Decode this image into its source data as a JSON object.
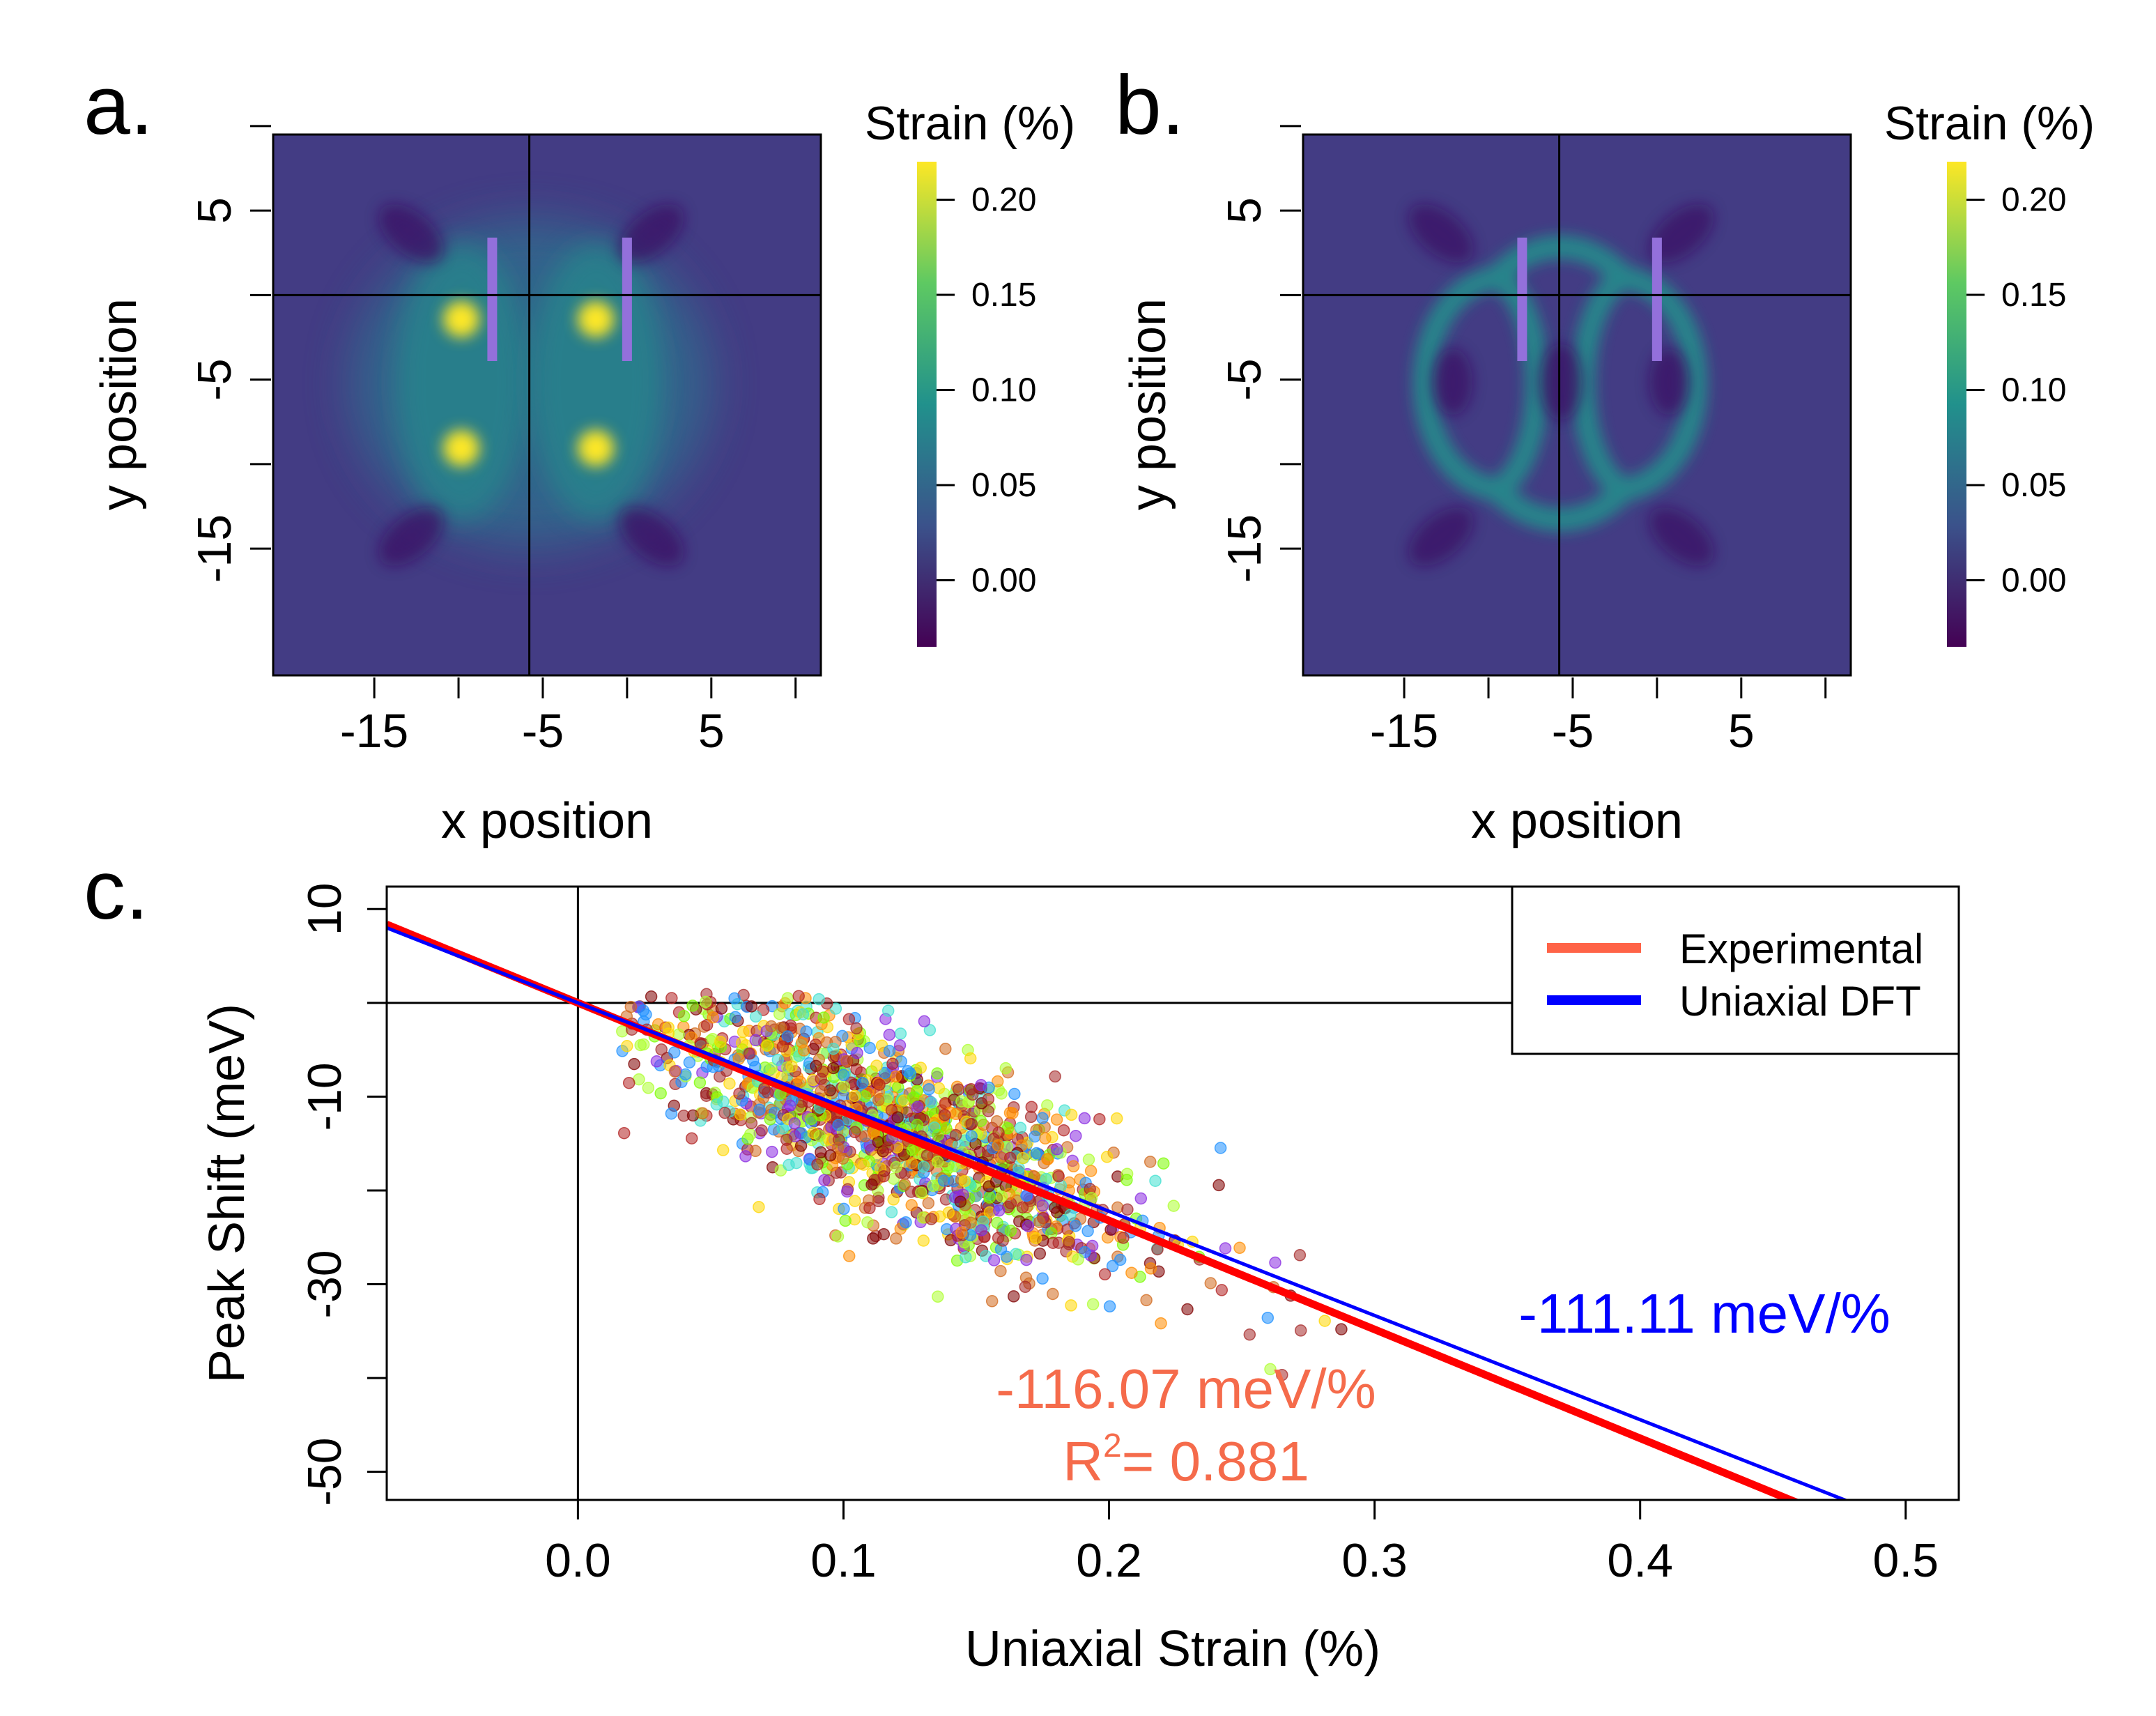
{
  "figure": {
    "panel_labels": [
      "a.",
      "b.",
      "c."
    ]
  },
  "chart_data": [
    {
      "panel": "a.",
      "type": "heatmap",
      "xlabel": "x position",
      "ylabel": "y position",
      "xlim": [
        -21,
        11.5
      ],
      "ylim": [
        -22.5,
        9.5
      ],
      "xticks": [
        -15,
        -5,
        5
      ],
      "xticks_minor": [
        -10,
        0,
        10
      ],
      "yticks": [
        -15,
        -5,
        5
      ],
      "yticks_minor": [
        -10,
        0,
        10
      ],
      "crosshair": {
        "x": -5.8,
        "y": 0
      },
      "rods": [
        {
          "x": -8,
          "y1": -3.9,
          "y2": 3.4
        },
        {
          "x": 0,
          "y1": -3.9,
          "y2": 3.4
        }
      ],
      "pattern": "tip-hotspots",
      "colorbar": {
        "title": "Strain (%)",
        "min": -0.035,
        "max": 0.22,
        "ticks": [
          "0.00",
          "0.05",
          "0.10",
          "0.15",
          "0.20"
        ],
        "tick_values": [
          0.0,
          0.05,
          0.1,
          0.15,
          0.2
        ],
        "colormap": [
          "#440154",
          "#3b528b",
          "#21918c",
          "#5ec962",
          "#fde725"
        ]
      },
      "colors": {
        "background": "#433c84",
        "rod": "#9370db"
      }
    },
    {
      "panel": "b.",
      "type": "heatmap",
      "xlabel": "x position",
      "ylabel": "y position",
      "xlim": [
        -21,
        11.5
      ],
      "ylim": [
        -22.5,
        9.5
      ],
      "xticks": [
        -15,
        -5,
        5
      ],
      "xticks_minor": [
        -10,
        0,
        10
      ],
      "yticks": [
        -15,
        -5,
        5
      ],
      "yticks_minor": [
        -10,
        0,
        10
      ],
      "crosshair": {
        "x": -5.8,
        "y": 0
      },
      "rods": [
        {
          "x": -8,
          "y1": -3.9,
          "y2": 3.4
        },
        {
          "x": 0,
          "y1": -3.9,
          "y2": 3.4
        }
      ],
      "pattern": "arc-ring",
      "colorbar": {
        "title": "Strain (%)",
        "min": -0.035,
        "max": 0.22,
        "ticks": [
          "0.00",
          "0.05",
          "0.10",
          "0.15",
          "0.20"
        ],
        "tick_values": [
          0.0,
          0.05,
          0.1,
          0.15,
          0.2
        ],
        "colormap": [
          "#440154",
          "#3b528b",
          "#21918c",
          "#5ec962",
          "#fde725"
        ]
      },
      "colors": {
        "background": "#433c84",
        "rod": "#9370db"
      }
    },
    {
      "panel": "c.",
      "type": "scatter",
      "xlabel": "Uniaxial Strain (%)",
      "ylabel": "Peak Shift (meV)",
      "xlim": [
        -0.072,
        0.52
      ],
      "ylim": [
        -53,
        12.4
      ],
      "xticks": [
        0.0,
        0.1,
        0.2,
        0.3,
        0.4,
        0.5
      ],
      "xtick_labels": [
        "0.0",
        "0.1",
        "0.2",
        "0.3",
        "0.4",
        "0.5"
      ],
      "yticks": [
        10,
        -10,
        -30,
        -50
      ],
      "yticks_minor": [
        0,
        -20,
        -40
      ],
      "ytick_labels": [
        "10",
        "-10",
        "-30",
        "-50"
      ],
      "reference_lines": {
        "x": 0,
        "y": 0
      },
      "fit_lines": [
        {
          "name": "Experimental",
          "slope": -116.07,
          "color": "#ff0000",
          "legend_color": "#ff6347"
        },
        {
          "name": "Uniaxial DFT",
          "slope": -111.11,
          "color": "#0000ff",
          "legend_color": "#0000ff"
        }
      ],
      "legend": {
        "position": "top-right",
        "entries": [
          "Experimental",
          "Uniaxial DFT"
        ]
      },
      "annotations": {
        "dft_slope": "-111.11 meV/%",
        "exp_slope": "-116.07 meV/%",
        "r2_prefix": "R",
        "r2_sup": "2",
        "r2_value": "= 0.881"
      },
      "scatter": {
        "n_points": 1400,
        "x_center": 0.12,
        "x_spread": 0.06,
        "slope": -116.07,
        "noise_meV": 5,
        "palette": [
          "#800000",
          "#b22222",
          "#d2691e",
          "#ff8c00",
          "#ffd700",
          "#adff2f",
          "#7cfc00",
          "#40e0d0",
          "#1e90ff",
          "#8a2be2",
          "#a52a2a"
        ],
        "opacity": 0.55
      },
      "colors": {
        "experimental": "#ff0000",
        "dft": "#0000ff",
        "exp_text": "#f56b4b",
        "dft_text": "#0000ff"
      }
    }
  ]
}
